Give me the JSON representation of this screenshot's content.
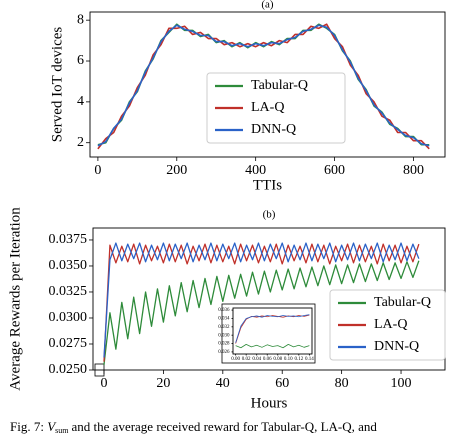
{
  "chart_data": [
    {
      "type": "line",
      "title": "(a)",
      "xlabel": "TTIs",
      "ylabel": "Served IoT devices",
      "x": [
        0,
        20,
        40,
        60,
        80,
        100,
        120,
        140,
        160,
        180,
        200,
        220,
        240,
        260,
        280,
        300,
        320,
        340,
        360,
        380,
        400,
        420,
        440,
        460,
        480,
        500,
        520,
        540,
        560,
        580,
        600,
        620,
        640,
        660,
        680,
        700,
        720,
        740,
        760,
        780,
        800,
        820,
        840
      ],
      "series": [
        {
          "name": "Tabular-Q",
          "color": "#2e8b3a",
          "values": [
            1.9,
            2.0,
            2.7,
            3.1,
            4.0,
            4.5,
            5.5,
            6.1,
            7.0,
            7.4,
            7.8,
            7.5,
            7.5,
            7.2,
            7.3,
            6.9,
            7.0,
            6.7,
            6.9,
            6.65,
            6.9,
            6.7,
            6.95,
            6.8,
            7.1,
            7.1,
            7.5,
            7.5,
            7.8,
            7.6,
            7.3,
            6.5,
            6.0,
            5.1,
            4.6,
            3.8,
            3.5,
            2.9,
            2.7,
            2.3,
            2.3,
            1.9,
            1.9
          ]
        },
        {
          "name": "LA-Q",
          "color": "#c0302a",
          "values": [
            1.7,
            2.2,
            2.5,
            3.3,
            3.8,
            4.7,
            5.3,
            6.3,
            6.8,
            7.6,
            7.6,
            7.7,
            7.3,
            7.4,
            7.1,
            7.1,
            6.8,
            6.9,
            6.7,
            6.85,
            6.7,
            6.9,
            6.75,
            7.0,
            6.9,
            7.3,
            7.3,
            7.7,
            7.6,
            7.8,
            7.1,
            6.7,
            5.8,
            5.3,
            4.4,
            4.0,
            3.3,
            3.1,
            2.5,
            2.5,
            2.1,
            2.1,
            1.7
          ]
        },
        {
          "name": "DNN-Q",
          "color": "#2a62c8",
          "values": [
            1.85,
            2.05,
            2.7,
            3.15,
            3.95,
            4.55,
            5.45,
            6.15,
            6.95,
            7.45,
            7.75,
            7.55,
            7.45,
            7.25,
            7.25,
            6.95,
            6.95,
            6.75,
            6.85,
            6.7,
            6.85,
            6.75,
            6.9,
            6.85,
            7.05,
            7.15,
            7.45,
            7.55,
            7.75,
            7.65,
            7.25,
            6.55,
            5.95,
            5.15,
            4.55,
            3.85,
            3.45,
            2.95,
            2.65,
            2.35,
            2.25,
            1.95,
            1.85
          ]
        }
      ],
      "xlim": [
        -20,
        880
      ],
      "xticks": [
        0,
        200,
        400,
        600,
        800
      ],
      "ylim": [
        1.3,
        8.4
      ],
      "yticks": [
        2,
        4,
        6,
        8
      ],
      "legend_position": "center"
    },
    {
      "type": "line",
      "title": "(b)",
      "xlabel": "Hours",
      "ylabel": "Average Rewards per Iteration",
      "x": [
        0,
        2,
        4,
        6,
        8,
        10,
        12,
        14,
        16,
        18,
        20,
        22,
        24,
        26,
        28,
        30,
        32,
        34,
        36,
        38,
        40,
        42,
        44,
        46,
        48,
        50,
        52,
        54,
        56,
        58,
        60,
        62,
        64,
        66,
        68,
        70,
        72,
        74,
        76,
        78,
        80,
        82,
        84,
        86,
        88,
        90,
        92,
        94,
        96,
        98,
        100,
        102,
        104,
        106
      ],
      "series": [
        {
          "name": "Tabular-Q",
          "color": "#2e8b3a",
          "values": [
            0.0255,
            0.0305,
            0.027,
            0.0315,
            0.028,
            0.032,
            0.0285,
            0.0325,
            0.0292,
            0.0328,
            0.0296,
            0.0331,
            0.0302,
            0.0334,
            0.0306,
            0.0336,
            0.031,
            0.0338,
            0.0313,
            0.034,
            0.0316,
            0.0341,
            0.0319,
            0.0342,
            0.0321,
            0.0344,
            0.0323,
            0.0345,
            0.0325,
            0.0346,
            0.0327,
            0.0347,
            0.0328,
            0.0348,
            0.033,
            0.0349,
            0.0331,
            0.035,
            0.0332,
            0.0351,
            0.0333,
            0.0351,
            0.0334,
            0.0352,
            0.0335,
            0.0352,
            0.0336,
            0.0353,
            0.0337,
            0.0353,
            0.0338,
            0.0354,
            0.0339,
            0.0355
          ]
        },
        {
          "name": "LA-Q",
          "color": "#c0302a",
          "values": [
            0.0258,
            0.037,
            0.0353,
            0.0369,
            0.0354,
            0.0371,
            0.0352,
            0.037,
            0.0355,
            0.0369,
            0.0353,
            0.0371,
            0.0354,
            0.037,
            0.0352,
            0.0369,
            0.0355,
            0.0371,
            0.0353,
            0.037,
            0.0354,
            0.0369,
            0.0352,
            0.0371,
            0.0355,
            0.037,
            0.0353,
            0.0369,
            0.0354,
            0.0371,
            0.0352,
            0.037,
            0.0355,
            0.0369,
            0.0353,
            0.0371,
            0.0354,
            0.037,
            0.0352,
            0.0369,
            0.0355,
            0.0371,
            0.0353,
            0.037,
            0.0354,
            0.0369,
            0.0352,
            0.0371,
            0.0355,
            0.037,
            0.0353,
            0.0369,
            0.0354,
            0.0371
          ]
        },
        {
          "name": "DNN-Q",
          "color": "#2a62c8",
          "values": [
            0.0262,
            0.0356,
            0.0372,
            0.0355,
            0.0371,
            0.0357,
            0.0372,
            0.0354,
            0.037,
            0.0356,
            0.0372,
            0.0355,
            0.0371,
            0.0357,
            0.0372,
            0.0354,
            0.037,
            0.0356,
            0.0372,
            0.0355,
            0.0371,
            0.0357,
            0.0372,
            0.0354,
            0.037,
            0.0356,
            0.0372,
            0.0355,
            0.0371,
            0.0357,
            0.0372,
            0.0354,
            0.037,
            0.0356,
            0.0372,
            0.0355,
            0.0371,
            0.0357,
            0.0372,
            0.0354,
            0.037,
            0.0356,
            0.0372,
            0.0355,
            0.0371,
            0.0357,
            0.0372,
            0.0354,
            0.037,
            0.0356,
            0.0372,
            0.0355,
            0.0371,
            0.0357
          ]
        }
      ],
      "xlim": [
        -3.7,
        114.8
      ],
      "xticks": [
        0,
        20,
        40,
        60,
        80,
        100
      ],
      "ylim": [
        0.025,
        0.03865
      ],
      "yticks": [
        {
          "value": 0.025,
          "label": "0.0250"
        },
        0.0275,
        {
          "value": 0.03,
          "label": "0.0300"
        },
        0.0325,
        {
          "value": 0.035,
          "label": "0.0350"
        },
        0.0375
      ],
      "legend_position": "lower right"
    },
    {
      "type": "line",
      "x": [
        0,
        0.01,
        0.02,
        0.03,
        0.04,
        0.05,
        0.06,
        0.07,
        0.08,
        0.09,
        0.1,
        0.11,
        0.12,
        0.13,
        0.14
      ],
      "series": [
        {
          "color": "#2e8b3a",
          "values": [
            0.0275,
            0.027,
            0.0278,
            0.0272,
            0.0276,
            0.0271,
            0.0277,
            0.0273,
            0.0275,
            0.027,
            0.0278,
            0.0272,
            0.0276,
            0.0271,
            0.0275
          ]
        },
        {
          "color": "#c0302a",
          "values": [
            0.028,
            0.0318,
            0.0338,
            0.0345,
            0.0343,
            0.0346,
            0.0344,
            0.0347,
            0.0345,
            0.0343,
            0.0346,
            0.0344,
            0.0347,
            0.0345,
            0.0348
          ]
        },
        {
          "color": "#2a62c8",
          "values": [
            0.0282,
            0.0322,
            0.034,
            0.0344,
            0.0346,
            0.0343,
            0.0347,
            0.0345,
            0.0344,
            0.0347,
            0.0345,
            0.0346,
            0.0344,
            0.0347,
            0.0349
          ]
        }
      ],
      "xlim": [
        -0.005,
        0.145
      ],
      "xticks": [
        {
          "value": 0,
          "label": "0.00"
        },
        0.02,
        0.04,
        0.06,
        0.08,
        {
          "value": 0.1,
          "label": "0.10"
        },
        0.12,
        0.14
      ],
      "ylim": [
        0.0255,
        0.0365
      ],
      "yticks": [
        0.026,
        0.028,
        {
          "value": 0.03,
          "label": "0.030"
        },
        0.032,
        0.034,
        0.036
      ]
    }
  ],
  "caption": {
    "prefix": "Fig. 7:",
    "symbol": "V",
    "subscript": "sum",
    "text": "and the average received reward for Tabular-Q, LA-Q, and"
  }
}
